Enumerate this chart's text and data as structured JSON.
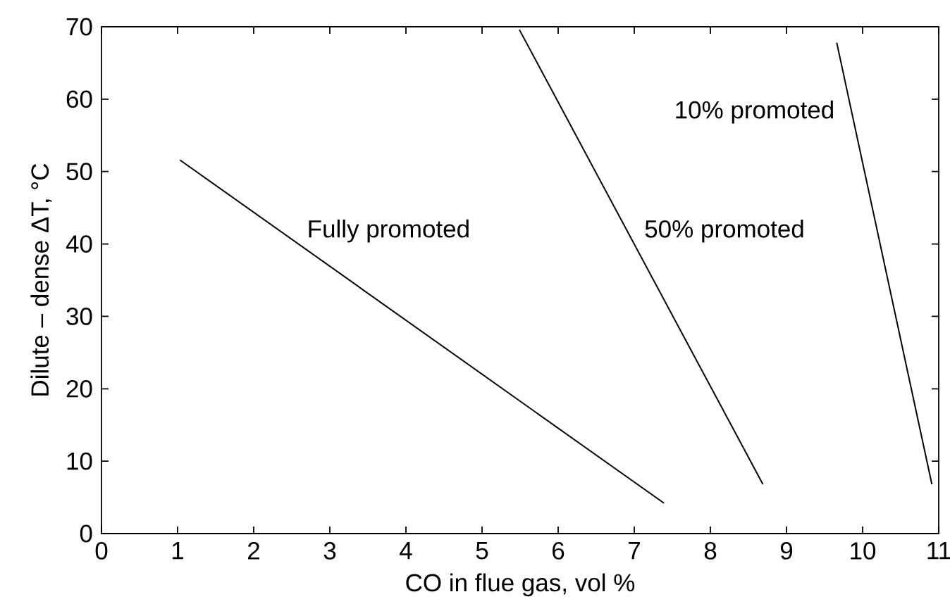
{
  "chart_data": {
    "type": "line",
    "xlabel": "CO in flue gas, vol %",
    "ylabel": "Dilute – dense ΔT, °C",
    "xlim": [
      0,
      11
    ],
    "ylim": [
      0,
      70
    ],
    "xticks": [
      0,
      1,
      2,
      3,
      4,
      5,
      6,
      7,
      8,
      9,
      10,
      11
    ],
    "yticks": [
      0,
      10,
      20,
      30,
      40,
      50,
      60,
      70
    ],
    "series": [
      {
        "name": "Fully promoted",
        "color": "#000000",
        "x": [
          1.03,
          7.39
        ],
        "values": [
          51.6,
          4.2
        ]
      },
      {
        "name": "50% promoted",
        "color": "#000000",
        "x": [
          5.49,
          8.69
        ],
        "values": [
          69.6,
          6.8
        ]
      },
      {
        "name": "10% promoted",
        "color": "#000000",
        "x": [
          9.66,
          10.91
        ],
        "values": [
          67.8,
          6.8
        ]
      }
    ]
  }
}
